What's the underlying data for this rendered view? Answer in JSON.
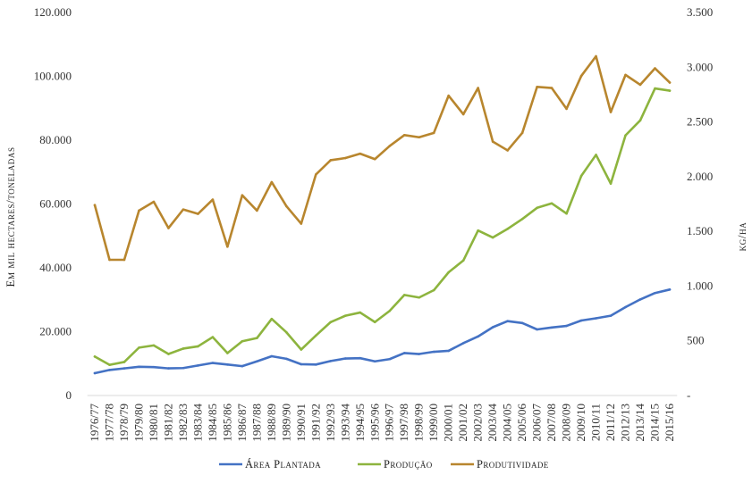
{
  "chart_data": {
    "type": "line",
    "title": "",
    "xlabel": "",
    "ylabel": "Em mil hectares/toneladas",
    "y2label": "kg/ha",
    "ylim": [
      0,
      120000
    ],
    "y2lim": [
      0,
      3500
    ],
    "grid": false,
    "legend_position": "bottom",
    "yticks": [
      "0",
      "20.000",
      "40.000",
      "60.000",
      "80.000",
      "100.000",
      "120.000"
    ],
    "y2ticks": [
      "-",
      "500",
      "1.000",
      "1.500",
      "2.000",
      "2.500",
      "3.000",
      "3.500"
    ],
    "categories": [
      "1976/77",
      "1977/78",
      "1978/79",
      "1979/80",
      "1980/81",
      "1981/82",
      "1982/83",
      "1983/84",
      "1984/85",
      "1985/86",
      "1986/87",
      "1987/88",
      "1988/89",
      "1989/90",
      "1990/91",
      "1991/92",
      "1992/93",
      "1993/94",
      "1994/95",
      "1995/96",
      "1996/97",
      "1997/98",
      "1998/99",
      "1999/00",
      "2000/01",
      "2001/02",
      "2002/03",
      "2003/04",
      "2004/05",
      "2005/06",
      "2006/07",
      "2007/08",
      "2008/09",
      "2009/10",
      "2010/11",
      "2011/12",
      "2012/13",
      "2013/14",
      "2014/15",
      "2015/16"
    ],
    "series": [
      {
        "name": "Área Plantada",
        "axis": "left",
        "color": "#4472c4",
        "values": [
          7000,
          8000,
          8500,
          9000,
          8900,
          8500,
          8600,
          9400,
          10200,
          9700,
          9200,
          10700,
          12300,
          11500,
          9800,
          9700,
          10800,
          11600,
          11700,
          10700,
          11400,
          13300,
          13000,
          13700,
          14000,
          16400,
          18500,
          21400,
          23300,
          22700,
          20700,
          21300,
          21800,
          23500,
          24200,
          25000,
          27700,
          30100,
          32100,
          33200
        ],
        "labels": [
          "Área",
          "Plantada"
        ]
      },
      {
        "name": "Produção",
        "axis": "left",
        "color": "#8db43e",
        "values": [
          12200,
          9600,
          10500,
          15000,
          15700,
          13000,
          14700,
          15400,
          18300,
          13300,
          17000,
          18000,
          24000,
          19800,
          14400,
          18800,
          23000,
          25000,
          26000,
          23000,
          26500,
          31500,
          30700,
          33000,
          38600,
          42300,
          51700,
          49500,
          52200,
          55300,
          58800,
          60200,
          57000,
          68800,
          75400,
          66400,
          81500,
          86200,
          96200,
          95500
        ]
      },
      {
        "name": "Produtividade",
        "axis": "right",
        "color": "#b8862e",
        "values": [
          1740,
          1240,
          1240,
          1690,
          1770,
          1530,
          1700,
          1660,
          1790,
          1360,
          1830,
          1690,
          1950,
          1730,
          1570,
          2020,
          2150,
          2170,
          2210,
          2160,
          2280,
          2380,
          2360,
          2400,
          2740,
          2570,
          2810,
          2320,
          2240,
          2400,
          2820,
          2810,
          2620,
          2920,
          3100,
          2590,
          2930,
          2840,
          2990,
          2860
        ]
      }
    ]
  }
}
